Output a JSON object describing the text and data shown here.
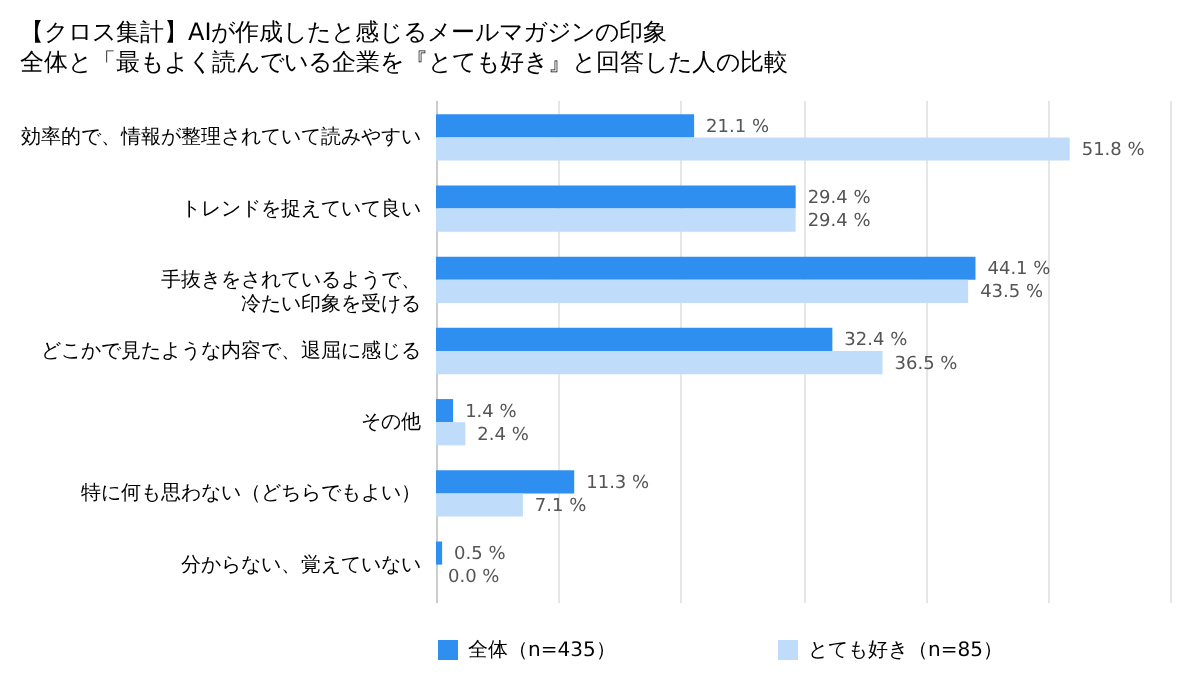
{
  "chart_data": {
    "type": "bar",
    "orientation": "horizontal",
    "title": "【クロス集計】AIが作成したと感じるメールマガジンの印象",
    "subtitle": "全体と「最もよく読んでいる企業を『とても好き』と回答した人の比較",
    "categories": [
      "効率的で、情報が整理されていて読みやすい",
      "トレンドを捉えていて良い",
      "手抜きをされているようで、冷たい印象を受ける",
      "どこかで見たような内容で、退屈に感じる",
      "その他",
      "特に何も思わない（どちらでもよい）",
      "分からない、覚えていない"
    ],
    "series": [
      {
        "name": "全体（n=435）",
        "color": "#2f8ff0",
        "values": [
          21.1,
          29.4,
          44.1,
          32.4,
          1.4,
          11.3,
          0.5
        ],
        "value_labels": [
          "21.1 %",
          "29.4 %",
          "44.1 %",
          "32.4 %",
          "1.4 %",
          "11.3 %",
          "0.5 %"
        ]
      },
      {
        "name": "とても好き（n=85）",
        "color": "#bfdcfa",
        "values": [
          51.8,
          29.4,
          43.5,
          36.5,
          2.4,
          7.1,
          0.0
        ],
        "value_labels": [
          "51.8 %",
          "29.4 %",
          "43.5 %",
          "36.5 %",
          "2.4 %",
          "7.1 %",
          "0.0 %"
        ]
      }
    ],
    "xlim": [
      0,
      60
    ],
    "xticks": [
      {
        "value": 0,
        "label": null
      },
      {
        "value": 10,
        "label": null
      },
      {
        "value": 20,
        "label": null
      },
      {
        "value": 30,
        "label": null
      },
      {
        "value": 40,
        "label": null
      },
      {
        "value": 50,
        "label": null
      },
      {
        "value": 60,
        "label": null
      }
    ],
    "tick_labels": "y",
    "grid": "x",
    "legend": "bottom"
  }
}
